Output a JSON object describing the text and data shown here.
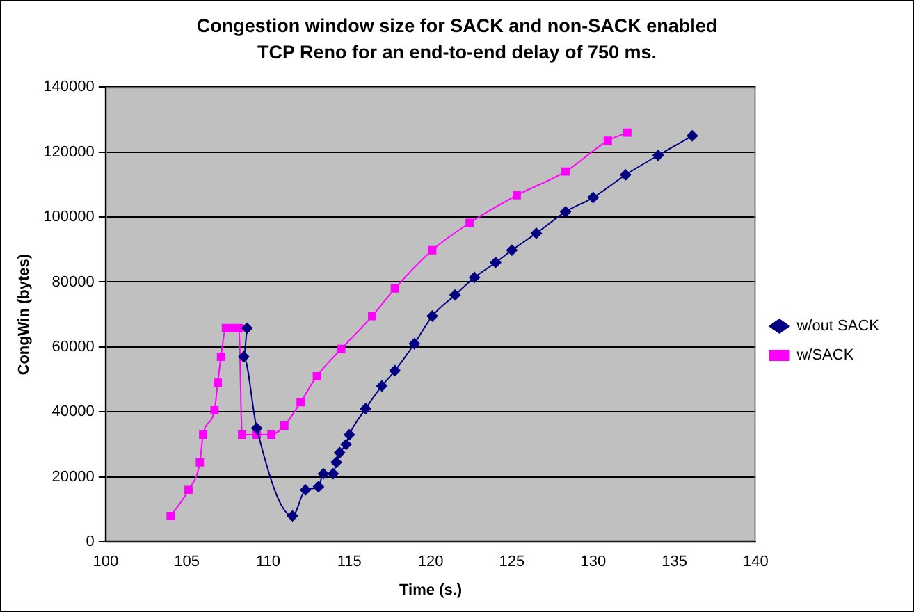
{
  "chart_data": {
    "type": "line",
    "title": "Congestion window size for SACK and non-SACK enabled TCP Reno for an end-to-end delay of 750 ms.",
    "xlabel": "Time (s.)",
    "ylabel": "CongWin (bytes)",
    "xlim": [
      100,
      140
    ],
    "xticks": [
      100,
      105,
      110,
      115,
      120,
      125,
      130,
      135,
      140
    ],
    "ylim": [
      0,
      140000
    ],
    "yticks": [
      0,
      20000,
      40000,
      60000,
      80000,
      100000,
      120000,
      140000
    ],
    "grid": "y",
    "legend": "right",
    "series": [
      {
        "name": "w/out SACK",
        "color": "#000080",
        "marker": "diamond",
        "x": [
          108.7,
          108.5,
          109.3,
          111.5,
          112.3,
          113.1,
          113.4,
          114.0,
          114.2,
          114.4,
          114.8,
          115.0,
          116.0,
          117.0,
          117.8,
          119.0,
          120.1,
          121.5,
          122.7,
          124.0,
          125.0,
          126.5,
          128.3,
          130.0,
          132.0,
          134.0,
          136.1
        ],
        "values": [
          65800,
          57000,
          35000,
          8000,
          16000,
          17000,
          21000,
          21000,
          24500,
          27500,
          30000,
          33000,
          41000,
          48000,
          52700,
          61000,
          69500,
          76000,
          81400,
          86000,
          89800,
          95000,
          101600,
          106000,
          113000,
          119000,
          125000
        ]
      },
      {
        "name": "w/SACK",
        "color": "#ff00ff",
        "marker": "square",
        "x": [
          104.0,
          105.1,
          105.8,
          106.0,
          106.7,
          106.9,
          107.1,
          107.4,
          107.8,
          108.2,
          108.4,
          109.3,
          110.2,
          111.0,
          112.0,
          113.0,
          114.5,
          116.4,
          117.8,
          120.1,
          122.4,
          125.3,
          128.3,
          130.9,
          132.1
        ],
        "values": [
          8000,
          16000,
          24500,
          33000,
          40500,
          49000,
          57000,
          65800,
          65800,
          65800,
          33000,
          33000,
          33000,
          35800,
          43000,
          51000,
          59400,
          69500,
          78000,
          89800,
          98200,
          106700,
          114000,
          123500,
          126000
        ]
      }
    ]
  }
}
